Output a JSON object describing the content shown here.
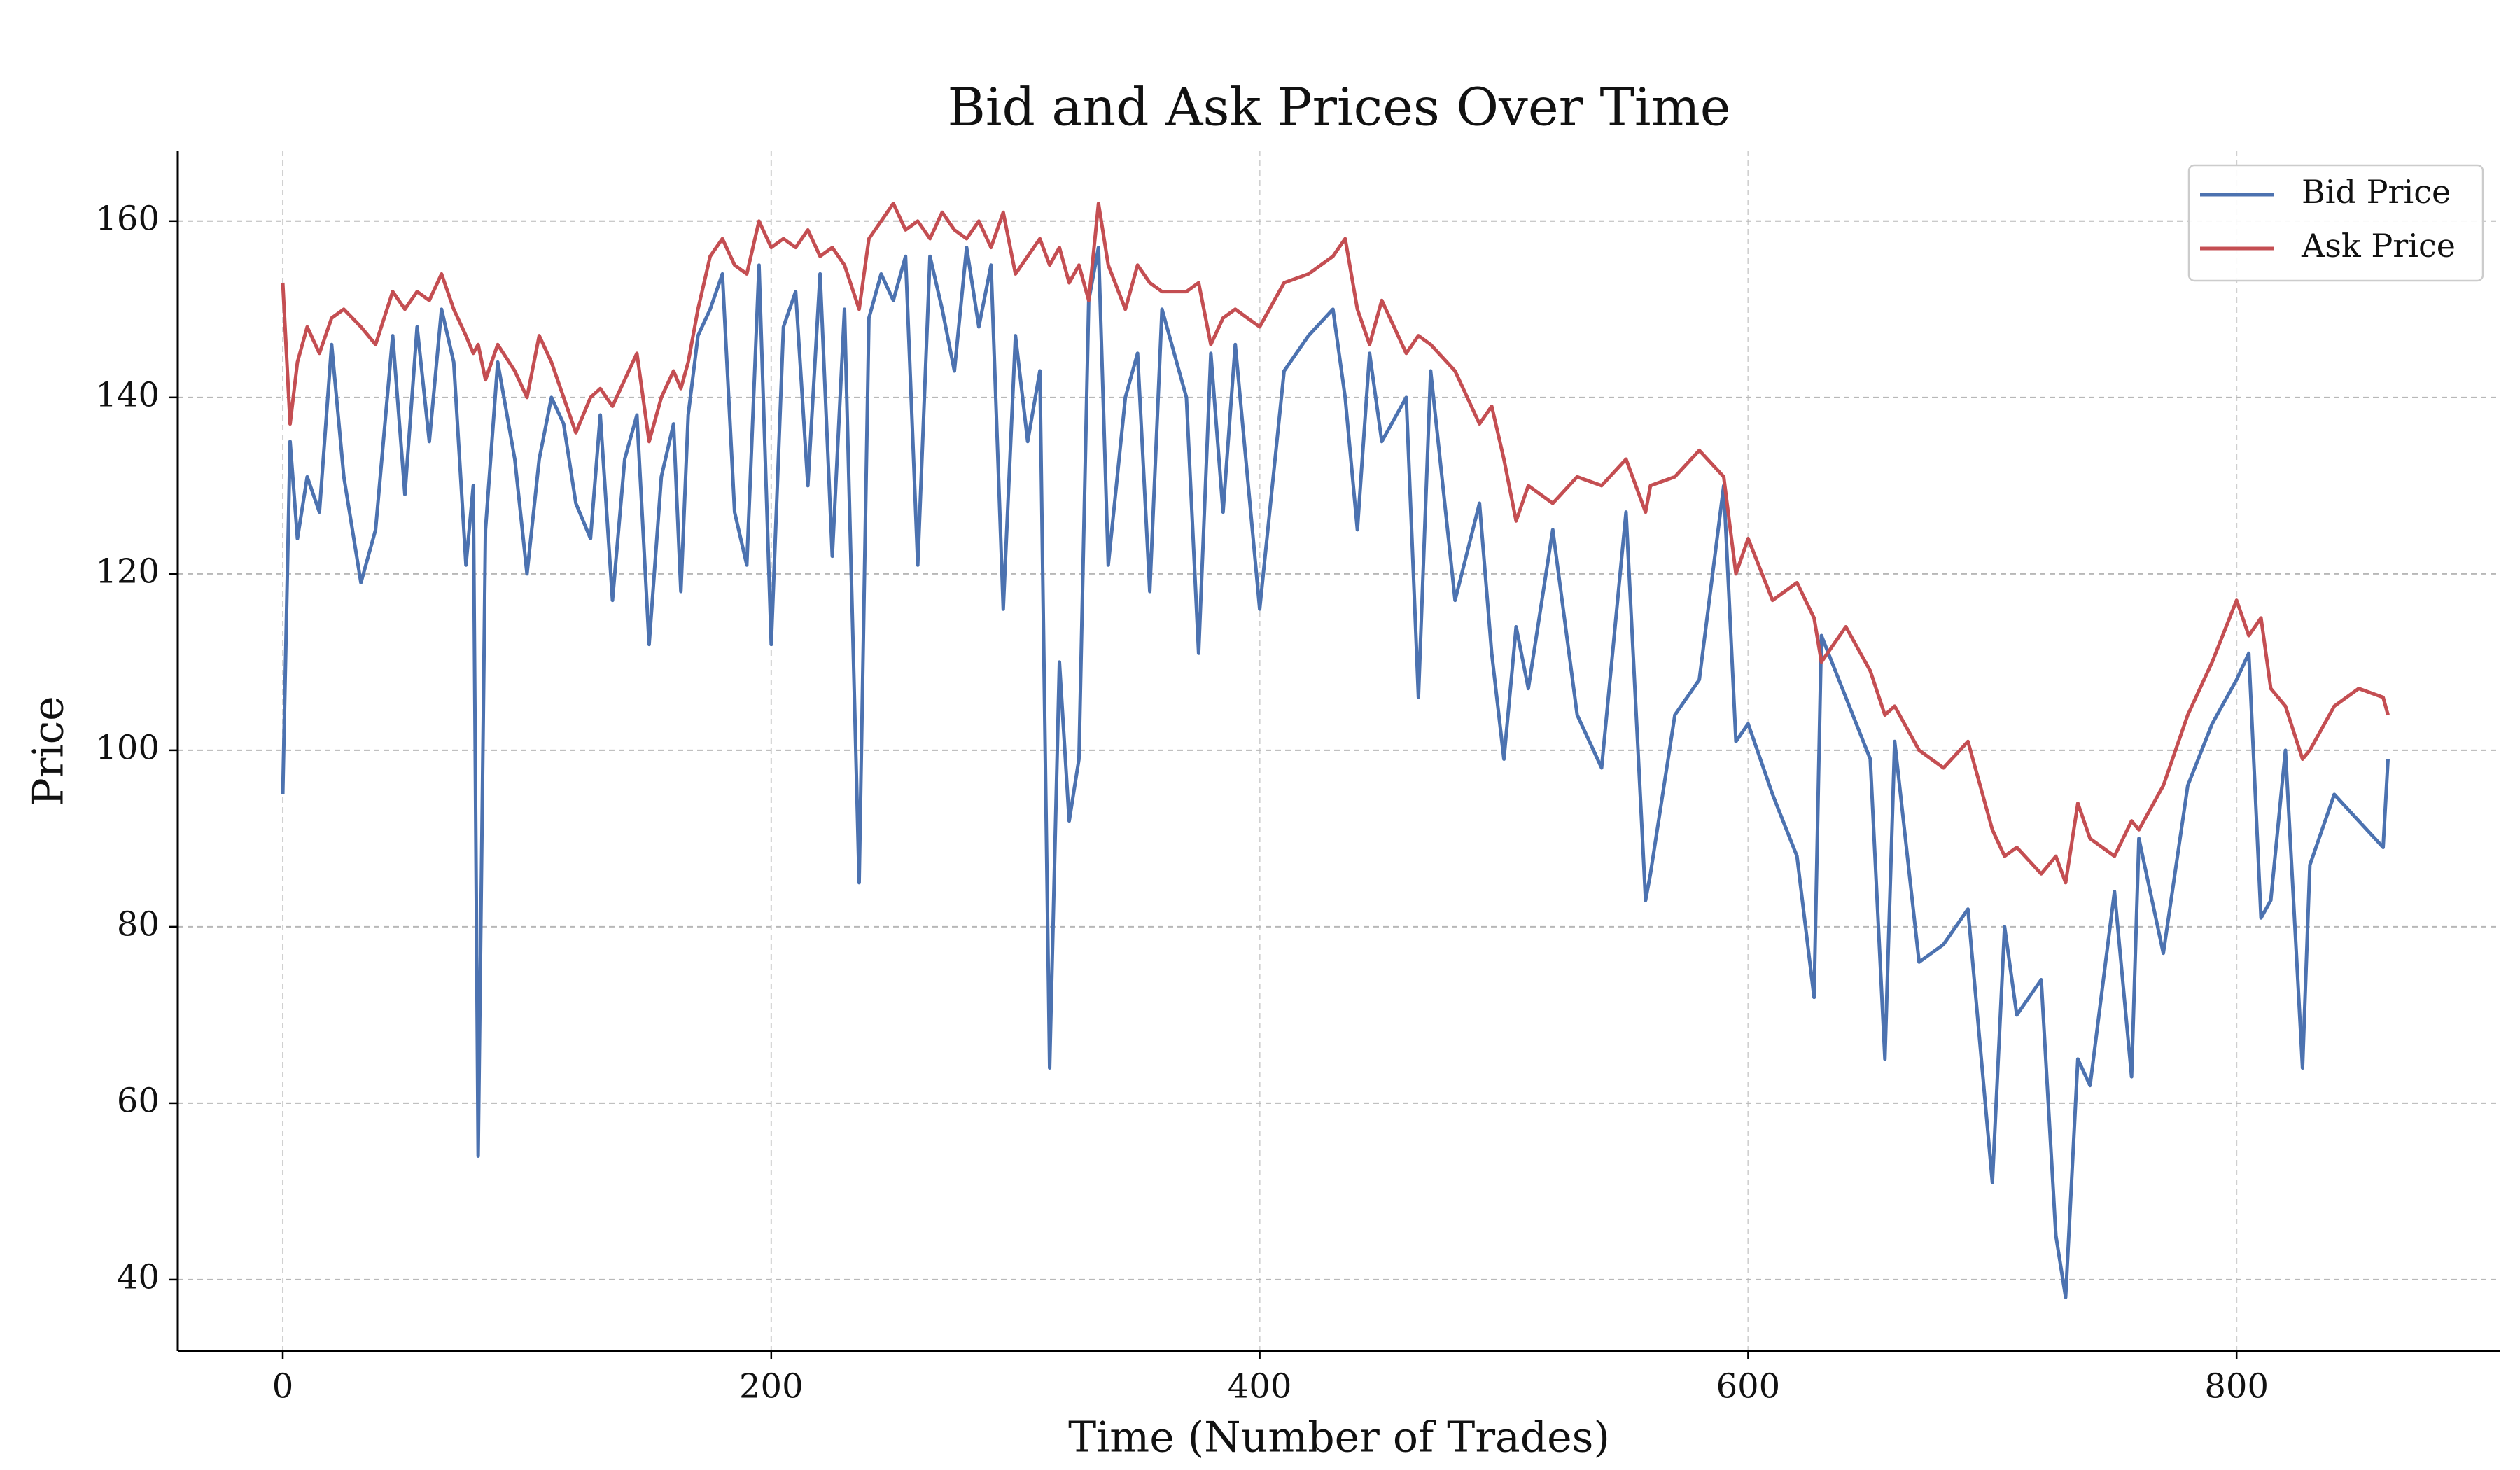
{
  "chart_data": {
    "type": "line",
    "title": "Bid and Ask Prices Over Time",
    "x_label": "Time (Number of Trades)",
    "y_label": "Price",
    "x": [
      0,
      3,
      6,
      10,
      15,
      20,
      25,
      32,
      38,
      45,
      50,
      55,
      60,
      65,
      70,
      75,
      78,
      80,
      83,
      88,
      95,
      100,
      105,
      110,
      115,
      120,
      126,
      130,
      135,
      140,
      145,
      150,
      155,
      160,
      163,
      166,
      170,
      175,
      180,
      185,
      190,
      195,
      200,
      205,
      210,
      215,
      220,
      225,
      230,
      236,
      240,
      245,
      250,
      255,
      260,
      265,
      270,
      275,
      280,
      285,
      290,
      295,
      300,
      305,
      310,
      314,
      318,
      322,
      326,
      330,
      334,
      338,
      345,
      350,
      355,
      360,
      370,
      375,
      380,
      385,
      390,
      400,
      410,
      420,
      430,
      435,
      440,
      445,
      450,
      460,
      465,
      470,
      480,
      490,
      495,
      500,
      505,
      510,
      520,
      530,
      540,
      550,
      558,
      560,
      570,
      580,
      590,
      595,
      600,
      610,
      620,
      627,
      630,
      640,
      650,
      656,
      660,
      670,
      680,
      690,
      700,
      705,
      710,
      720,
      726,
      730,
      735,
      740,
      750,
      757,
      760,
      770,
      780,
      790,
      800,
      805,
      810,
      814,
      820,
      827,
      830,
      840,
      850,
      860,
      862
    ],
    "series": [
      {
        "name": "Bid Price",
        "color": "#4c72b0",
        "values": [
          95,
          135,
          124,
          131,
          127,
          146,
          131,
          119,
          125,
          147,
          129,
          148,
          135,
          150,
          144,
          121,
          130,
          54,
          125,
          144,
          133,
          120,
          133,
          140,
          137,
          128,
          124,
          138,
          117,
          133,
          138,
          112,
          131,
          137,
          118,
          138,
          147,
          150,
          154,
          127,
          121,
          155,
          112,
          148,
          152,
          130,
          154,
          122,
          150,
          85,
          149,
          154,
          151,
          156,
          121,
          156,
          150,
          143,
          157,
          148,
          155,
          116,
          147,
          135,
          143,
          64,
          110,
          92,
          99,
          151,
          157,
          121,
          140,
          145,
          118,
          150,
          140,
          111,
          145,
          127,
          146,
          116,
          143,
          147,
          150,
          140,
          125,
          145,
          135,
          140,
          106,
          143,
          117,
          128,
          111,
          99,
          114,
          107,
          125,
          104,
          98,
          127,
          83,
          86,
          104,
          108,
          130,
          101,
          103,
          95,
          88,
          72,
          113,
          106,
          99,
          65,
          101,
          76,
          78,
          82,
          51,
          80,
          70,
          74,
          45,
          38,
          65,
          62,
          84,
          63,
          90,
          77,
          96,
          103,
          108,
          111,
          81,
          83,
          100,
          64,
          87,
          95,
          92,
          89,
          99
        ]
      },
      {
        "name": "Ask Price",
        "color": "#c44e52",
        "values": [
          153,
          137,
          144,
          148,
          145,
          149,
          150,
          148,
          146,
          152,
          150,
          152,
          151,
          154,
          150,
          147,
          145,
          146,
          142,
          146,
          143,
          140,
          147,
          144,
          140,
          136,
          140,
          141,
          139,
          142,
          145,
          135,
          140,
          143,
          141,
          144,
          150,
          156,
          158,
          155,
          154,
          160,
          157,
          158,
          157,
          159,
          156,
          157,
          155,
          150,
          158,
          160,
          162,
          159,
          160,
          158,
          161,
          159,
          158,
          160,
          157,
          161,
          154,
          156,
          158,
          155,
          157,
          153,
          155,
          151,
          162,
          155,
          150,
          155,
          153,
          152,
          152,
          153,
          146,
          149,
          150,
          148,
          153,
          154,
          156,
          158,
          150,
          146,
          151,
          145,
          147,
          146,
          143,
          137,
          139,
          133,
          126,
          130,
          128,
          131,
          130,
          133,
          127,
          130,
          131,
          134,
          131,
          120,
          124,
          117,
          119,
          115,
          110,
          114,
          109,
          104,
          105,
          100,
          98,
          101,
          91,
          88,
          89,
          86,
          88,
          85,
          94,
          90,
          88,
          92,
          91,
          96,
          104,
          110,
          117,
          113,
          115,
          107,
          105,
          99,
          100,
          105,
          107,
          106,
          104
        ]
      }
    ],
    "xlim": [
      -43,
      908
    ],
    "ylim": [
      31.9,
      168
    ],
    "xticks": [
      0,
      200,
      400,
      600,
      800
    ],
    "yticks": [
      40,
      60,
      80,
      100,
      120,
      140,
      160
    ],
    "grid": true,
    "legend": "upper right"
  }
}
